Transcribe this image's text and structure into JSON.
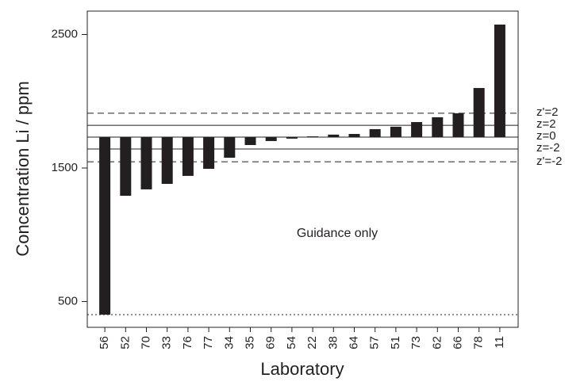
{
  "chart_data": {
    "type": "bar",
    "y_label": "Concentration Li / ppm",
    "x_label": "Laboratory",
    "annotation": "Guidance only",
    "categories": [
      "56",
      "52",
      "70",
      "33",
      "76",
      "77",
      "34",
      "35",
      "69",
      "54",
      "22",
      "38",
      "64",
      "57",
      "51",
      "73",
      "62",
      "66",
      "78",
      "11"
    ],
    "values": [
      402,
      1292,
      1340,
      1381,
      1441,
      1494,
      1577,
      1672,
      1702,
      1720,
      1737,
      1750,
      1755,
      1791,
      1809,
      1844,
      1880,
      1910,
      2099,
      2574
    ],
    "color": "#231f20",
    "ylim": [
      307,
      2675
    ],
    "yticks": [
      500,
      1500,
      2500
    ],
    "baseline_line": 2,
    "reference_lines": [
      {
        "value": 1910,
        "label": "z'=2",
        "style": "dashed"
      },
      {
        "value": 1820,
        "label": "z=2",
        "style": "solid"
      },
      {
        "value": 1731,
        "label": "z=0",
        "style": "solid"
      },
      {
        "value": 1642,
        "label": "z=-2",
        "style": "solid"
      },
      {
        "value": 1547,
        "label": "z'=-2",
        "style": "dashed"
      },
      {
        "value": 402,
        "style": "dotted"
      }
    ]
  }
}
